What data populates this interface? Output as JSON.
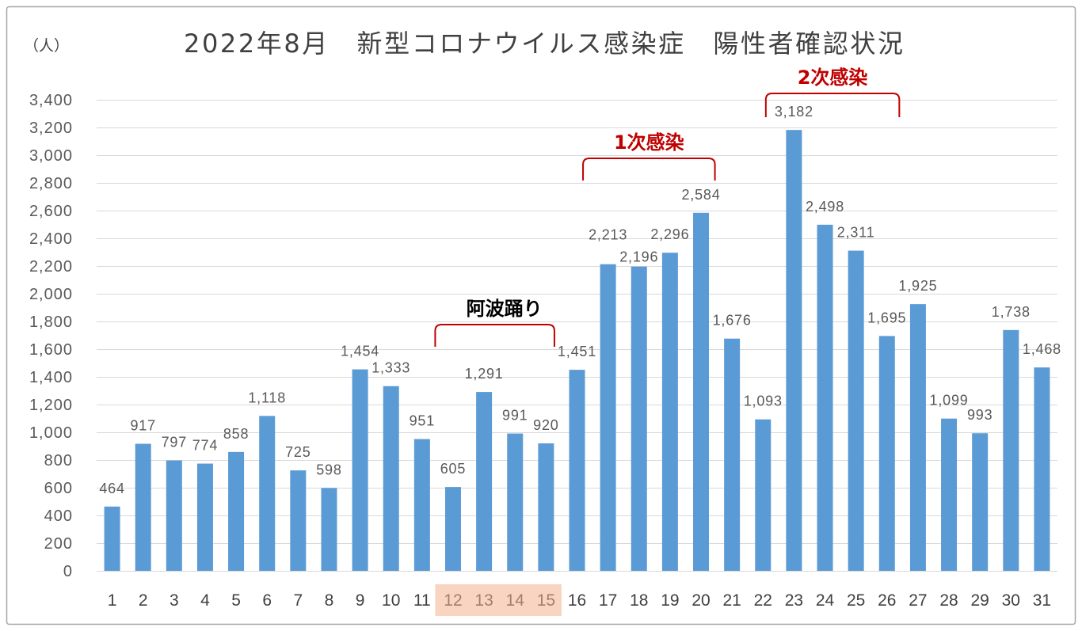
{
  "chart_data": {
    "type": "bar",
    "title": "2022年8月　新型コロナウイルス感染症　陽性者確認状況",
    "xlabel": "",
    "ylabel": "（人）",
    "ylim": [
      0,
      3400
    ],
    "y_tick_step": 200,
    "y_tick_labels": [
      "0",
      "200",
      "400",
      "600",
      "800",
      "1,000",
      "1,200",
      "1,400",
      "1,600",
      "1,800",
      "2,000",
      "2,200",
      "2,400",
      "2,600",
      "2,800",
      "3,000",
      "3,200",
      "3,400"
    ],
    "grid": true,
    "categories": [
      "1",
      "2",
      "3",
      "4",
      "5",
      "6",
      "7",
      "8",
      "9",
      "10",
      "11",
      "12",
      "13",
      "14",
      "15",
      "16",
      "17",
      "18",
      "19",
      "20",
      "21",
      "22",
      "23",
      "24",
      "25",
      "26",
      "27",
      "28",
      "29",
      "30",
      "31"
    ],
    "values": [
      464,
      917,
      797,
      774,
      858,
      1118,
      725,
      598,
      1454,
      1333,
      951,
      605,
      1291,
      991,
      920,
      1451,
      2213,
      2196,
      2296,
      2584,
      1676,
      1093,
      3182,
      2498,
      2311,
      1695,
      1925,
      1099,
      993,
      1738,
      1468
    ],
    "data_labels": [
      "464",
      "917",
      "797",
      "774",
      "858",
      "1,118",
      "725",
      "598",
      "1,454",
      "1,333",
      "951",
      "605",
      "1,291",
      "991",
      "920",
      "1,451",
      "2,213",
      "2,196",
      "2,296",
      "2,584",
      "1,676",
      "1,093",
      "3,182",
      "2,498",
      "2,311",
      "1,695",
      "1,925",
      "1,099",
      "993",
      "1,738",
      "1,468"
    ],
    "highlighted_categories": [
      "12",
      "13",
      "14",
      "15"
    ],
    "annotations": [
      {
        "text": "阿波踊り",
        "from": "12",
        "to": "15",
        "color": "#000000"
      },
      {
        "text": "1次感染",
        "from": "17",
        "to": "20",
        "color": "#c00000"
      },
      {
        "text": "2次感染",
        "from": "23",
        "to": "26",
        "color": "#c00000"
      }
    ]
  },
  "colors": {
    "bar": "#5b9bd5",
    "grid": "#d9d9d9",
    "bracket": "#c00000",
    "highlight": "#f9d5c1",
    "highlight_text": "#a0806b",
    "axis_text": "#404040",
    "data_label": "#595959",
    "frame": "#a6a6a6"
  }
}
